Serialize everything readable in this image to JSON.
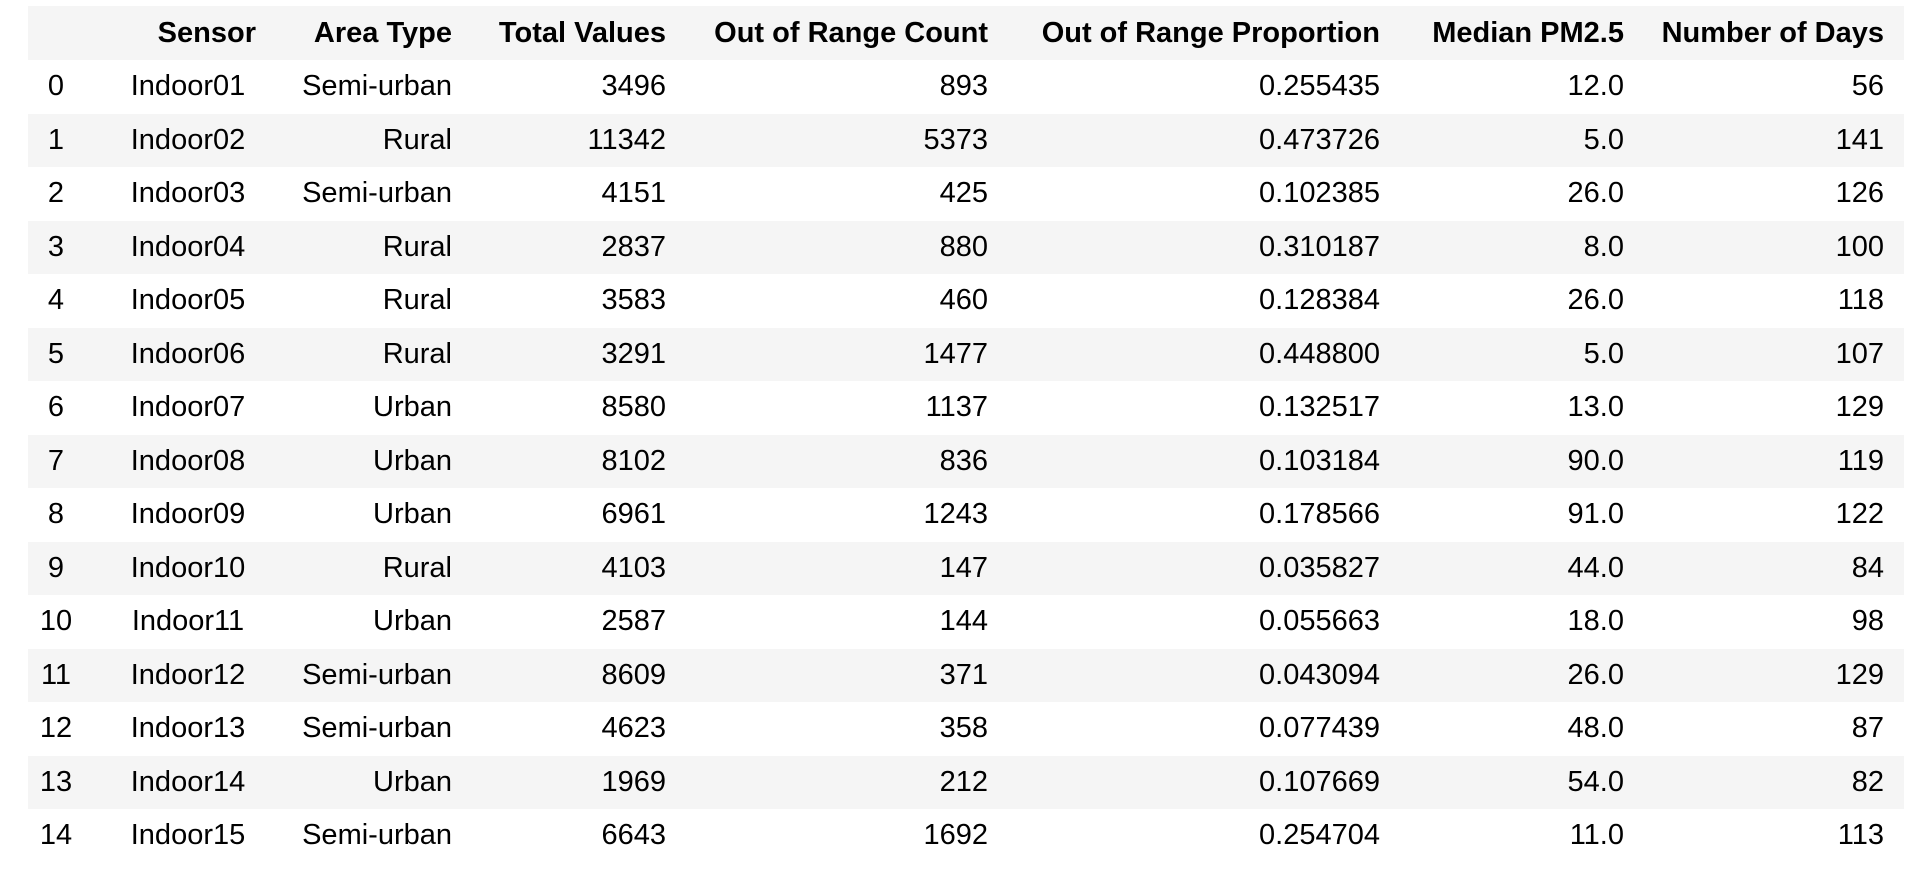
{
  "table": {
    "columns": [
      "",
      "Sensor",
      "Area Type",
      "Total Values",
      "Out of Range Count",
      "Out of Range Proportion",
      "Median PM2.5",
      "Number of Days"
    ],
    "rows": [
      [
        "0",
        "Indoor01",
        "Semi-urban",
        "3496",
        "893",
        "0.255435",
        "12.0",
        "56"
      ],
      [
        "1",
        "Indoor02",
        "Rural",
        "11342",
        "5373",
        "0.473726",
        "5.0",
        "141"
      ],
      [
        "2",
        "Indoor03",
        "Semi-urban",
        "4151",
        "425",
        "0.102385",
        "26.0",
        "126"
      ],
      [
        "3",
        "Indoor04",
        "Rural",
        "2837",
        "880",
        "0.310187",
        "8.0",
        "100"
      ],
      [
        "4",
        "Indoor05",
        "Rural",
        "3583",
        "460",
        "0.128384",
        "26.0",
        "118"
      ],
      [
        "5",
        "Indoor06",
        "Rural",
        "3291",
        "1477",
        "0.448800",
        "5.0",
        "107"
      ],
      [
        "6",
        "Indoor07",
        "Urban",
        "8580",
        "1137",
        "0.132517",
        "13.0",
        "129"
      ],
      [
        "7",
        "Indoor08",
        "Urban",
        "8102",
        "836",
        "0.103184",
        "90.0",
        "119"
      ],
      [
        "8",
        "Indoor09",
        "Urban",
        "6961",
        "1243",
        "0.178566",
        "91.0",
        "122"
      ],
      [
        "9",
        "Indoor10",
        "Rural",
        "4103",
        "147",
        "0.035827",
        "44.0",
        "84"
      ],
      [
        "10",
        "Indoor11",
        "Urban",
        "2587",
        "144",
        "0.055663",
        "18.0",
        "98"
      ],
      [
        "11",
        "Indoor12",
        "Semi-urban",
        "8609",
        "371",
        "0.043094",
        "26.0",
        "129"
      ],
      [
        "12",
        "Indoor13",
        "Semi-urban",
        "4623",
        "358",
        "0.077439",
        "48.0",
        "87"
      ],
      [
        "13",
        "Indoor14",
        "Urban",
        "1969",
        "212",
        "0.107669",
        "54.0",
        "82"
      ],
      [
        "14",
        "Indoor15",
        "Semi-urban",
        "6643",
        "1692",
        "0.254704",
        "11.0",
        "113"
      ]
    ]
  },
  "colors": {
    "header_bg": "#f5f5f5",
    "stripe_bg": "#f5f5f5",
    "row_bg": "#ffffff",
    "text": "#000000"
  }
}
